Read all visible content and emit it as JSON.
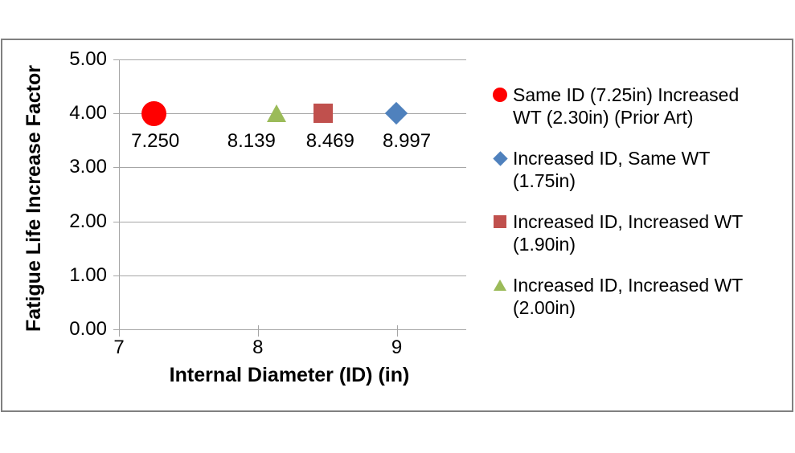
{
  "window": {
    "background": "#FFFFFF",
    "frame_border_color": "#808080"
  },
  "chart_data": {
    "type": "scatter",
    "title": "",
    "xlabel": "Internal Diameter (ID) (in)",
    "ylabel": "Fatigue Life Increase Factor",
    "xlim": [
      7,
      9.5
    ],
    "ylim": [
      0,
      5
    ],
    "grid": "horizontal-only",
    "gridline_color": "#A6A6A6",
    "axis_color": "#A6A6A6",
    "legend_position": "right",
    "xticks": [
      {
        "value": 7,
        "label": "7"
      },
      {
        "value": 8,
        "label": "8"
      },
      {
        "value": 9,
        "label": "9"
      }
    ],
    "yticks": [
      {
        "value": 0,
        "label": "0.00"
      },
      {
        "value": 1,
        "label": "1.00"
      },
      {
        "value": 2,
        "label": "2.00"
      },
      {
        "value": 3,
        "label": "3.00"
      },
      {
        "value": 4,
        "label": "4.00"
      },
      {
        "value": 5,
        "label": "5.00"
      }
    ],
    "series": [
      {
        "name": "Same ID (7.25in) Increased WT (2.30in) (Prior Art)",
        "legend_lines": [
          "Same ID (7.25in) Increased",
          "WT (2.30in) (Prior Art)"
        ],
        "marker": "circle",
        "color": "#FF0000",
        "points": [
          {
            "x": 7.25,
            "y": 4.0,
            "label": "7.250",
            "label_dx": 2
          }
        ]
      },
      {
        "name": "Increased ID, Same WT (1.75in)",
        "legend_lines": [
          "Increased ID, Same WT",
          "(1.75in)"
        ],
        "marker": "diamond",
        "color": "#4F81BD",
        "points": [
          {
            "x": 8.997,
            "y": 4.0,
            "label": "8.997",
            "label_dx": 13
          }
        ]
      },
      {
        "name": "Increased ID, Increased WT (1.90in)",
        "legend_lines": [
          "Increased ID, Increased WT",
          "(1.90in)"
        ],
        "marker": "square",
        "color": "#C0504D",
        "points": [
          {
            "x": 8.469,
            "y": 4.0,
            "label": "8.469",
            "label_dx": 9
          }
        ]
      },
      {
        "name": "Increased ID, Increased WT (2.00in)",
        "legend_lines": [
          "Increased ID, Increased WT",
          "(2.00in)"
        ],
        "marker": "triangle",
        "color": "#9BBB59",
        "points": [
          {
            "x": 8.139,
            "y": 4.0,
            "label": "8.139",
            "label_dx": -32
          }
        ]
      }
    ]
  }
}
